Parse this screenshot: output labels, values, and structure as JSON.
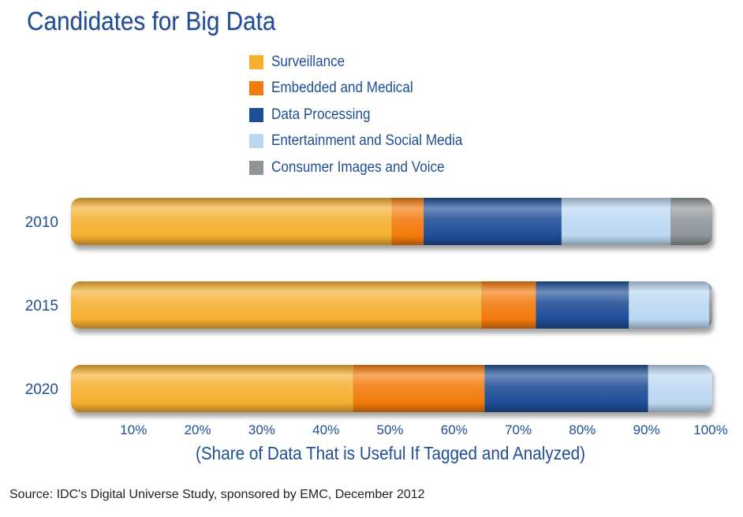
{
  "chart_data": {
    "type": "bar",
    "orientation": "horizontal",
    "stacked": true,
    "title": "Candidates for Big Data",
    "xlabel": "(Share of Data That is Useful If Tagged and Analyzed)",
    "ylabel": "",
    "xlim": [
      0,
      100
    ],
    "x_ticks": [
      "10%",
      "20%",
      "30%",
      "40%",
      "50%",
      "60%",
      "70%",
      "80%",
      "90%",
      "100%"
    ],
    "categories": [
      "2010",
      "2015",
      "2020"
    ],
    "series": [
      {
        "name": "Surveillance",
        "color": "#f5b030",
        "values": [
          50,
          64,
          44
        ]
      },
      {
        "name": "Embedded and Medical",
        "color": "#f37a0c",
        "values": [
          5,
          8.5,
          20.5
        ]
      },
      {
        "name": "Data Processing",
        "color": "#1f4e96",
        "values": [
          21.5,
          14.5,
          25.5
        ]
      },
      {
        "name": "Entertainment and Social Media",
        "color": "#bcd7f2",
        "values": [
          17,
          12.5,
          10
        ]
      },
      {
        "name": "Consumer Images and Voice",
        "color": "#8f9599",
        "values": [
          6.5,
          0.5,
          0
        ]
      }
    ],
    "legend_position": "top-center",
    "grid": false
  },
  "source": "Source: IDC's Digital Universe Study, sponsored by EMC, December 2012"
}
